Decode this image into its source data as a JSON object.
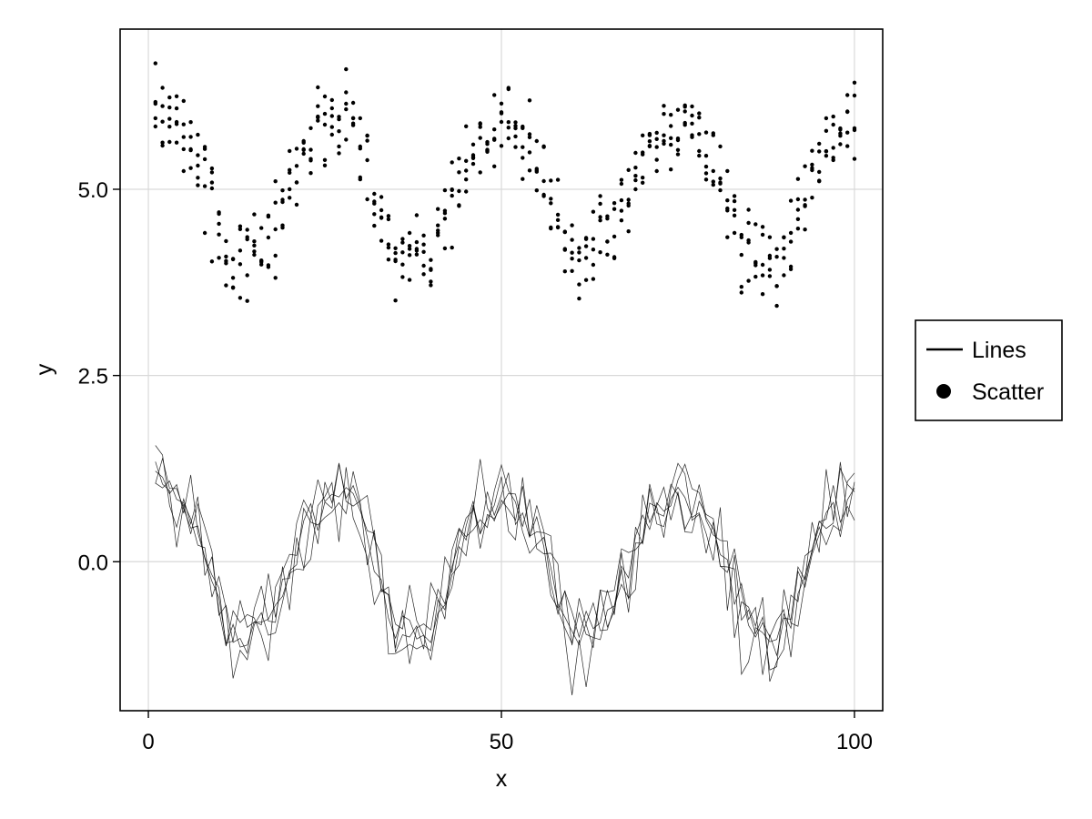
{
  "chart_data": {
    "type": "line",
    "x_axis": {
      "label": "x",
      "range": [
        -4,
        104
      ],
      "ticks": [
        0,
        50,
        100
      ],
      "tick_labels": [
        "0",
        "50",
        "100"
      ]
    },
    "y_axis": {
      "label": "y",
      "range": [
        -2.0,
        7.15
      ],
      "ticks": [
        0.0,
        2.5,
        5.0
      ],
      "tick_labels": [
        "0.0",
        "2.5",
        "5.0"
      ]
    },
    "grid": true,
    "legend": {
      "placement": "right",
      "entries": [
        {
          "label": "Lines",
          "marker": "line"
        },
        {
          "label": "Scatter",
          "marker": "circle"
        }
      ]
    },
    "series": [
      {
        "legend_entry": "Lines",
        "style": "line",
        "repeats": 5,
        "x": [
          1,
          6,
          11,
          16,
          20,
          24,
          29,
          35,
          40,
          45,
          50,
          55,
          60,
          66,
          71,
          76,
          80,
          84,
          89,
          95,
          100
        ],
        "y": [
          1.0,
          0.6,
          -0.9,
          -0.9,
          -0.1,
          0.9,
          0.9,
          -1.0,
          -0.9,
          0.4,
          1.0,
          0.5,
          -1.1,
          -0.5,
          0.6,
          0.9,
          0.4,
          -0.8,
          -1.1,
          0.5,
          0.9
        ]
      },
      {
        "legend_entry": "Scatter",
        "style": "scatter",
        "repeats": 5,
        "x": [
          1,
          6,
          11,
          16,
          20,
          24,
          29,
          35,
          40,
          45,
          50,
          55,
          60,
          66,
          71,
          76,
          80,
          84,
          89,
          95,
          100
        ],
        "y": [
          6.0,
          5.6,
          4.1,
          4.1,
          4.9,
          5.9,
          5.9,
          4.0,
          4.1,
          5.4,
          6.0,
          5.5,
          3.9,
          4.5,
          5.6,
          5.9,
          5.4,
          4.2,
          3.9,
          5.5,
          5.9
        ]
      }
    ]
  }
}
